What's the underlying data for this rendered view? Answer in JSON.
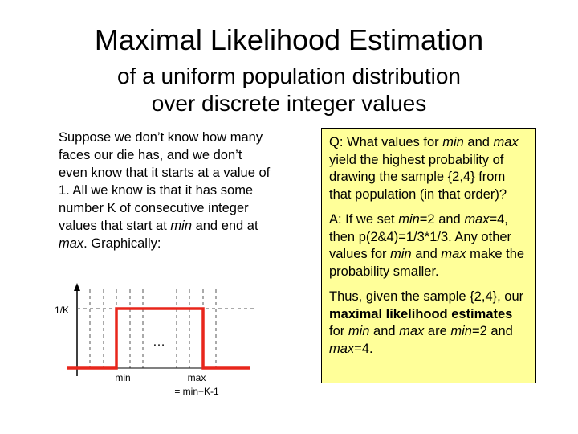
{
  "title": "Maximal Likelihood Estimation",
  "subtitle_line1": "of a uniform population distribution",
  "subtitle_line2": "over discrete integer values",
  "left_paragraph": {
    "p1": "Suppose we don’t know how many faces our die has, and we don’t even know that it starts at a value of 1. All we know is that it has some number K of consecutive integer values that start at ",
    "min": "min",
    "p2": " and end at ",
    "max": "max",
    "p3": ". Graphically:"
  },
  "diagram": {
    "y_label": "1/K",
    "ellipsis": "…",
    "min_label": "min",
    "max_label": "max",
    "max_formula": "= min+K-1",
    "colors": {
      "step": "#e8261c",
      "axis": "#000000",
      "dashed": "#555555"
    }
  },
  "box": {
    "q": {
      "a": "Q: What values for ",
      "min": "min",
      "b": " and ",
      "max": "max",
      "c": " yield the highest probability of drawing the sample {2,4} from that population (in that order)?"
    },
    "a": {
      "a": "A: If we set ",
      "min": "min",
      "b": "=2 and ",
      "max": "max",
      "c": "=4, then p(2&4)=1/3*1/3. Any other values for ",
      "min2": "min",
      "d": " and ",
      "max2": "max",
      "e": " make the probability smaller."
    },
    "thus": {
      "a": "Thus, given the sample {2,4}, our ",
      "bold": "maximal likelihood estimates",
      "b": " for ",
      "min": "min",
      "c": " and ",
      "max": "max",
      "d": " are ",
      "min2": "min",
      "e": "=2 and ",
      "max2": "max",
      "f": "=4."
    },
    "colors": {
      "background": "#ffff99"
    }
  }
}
